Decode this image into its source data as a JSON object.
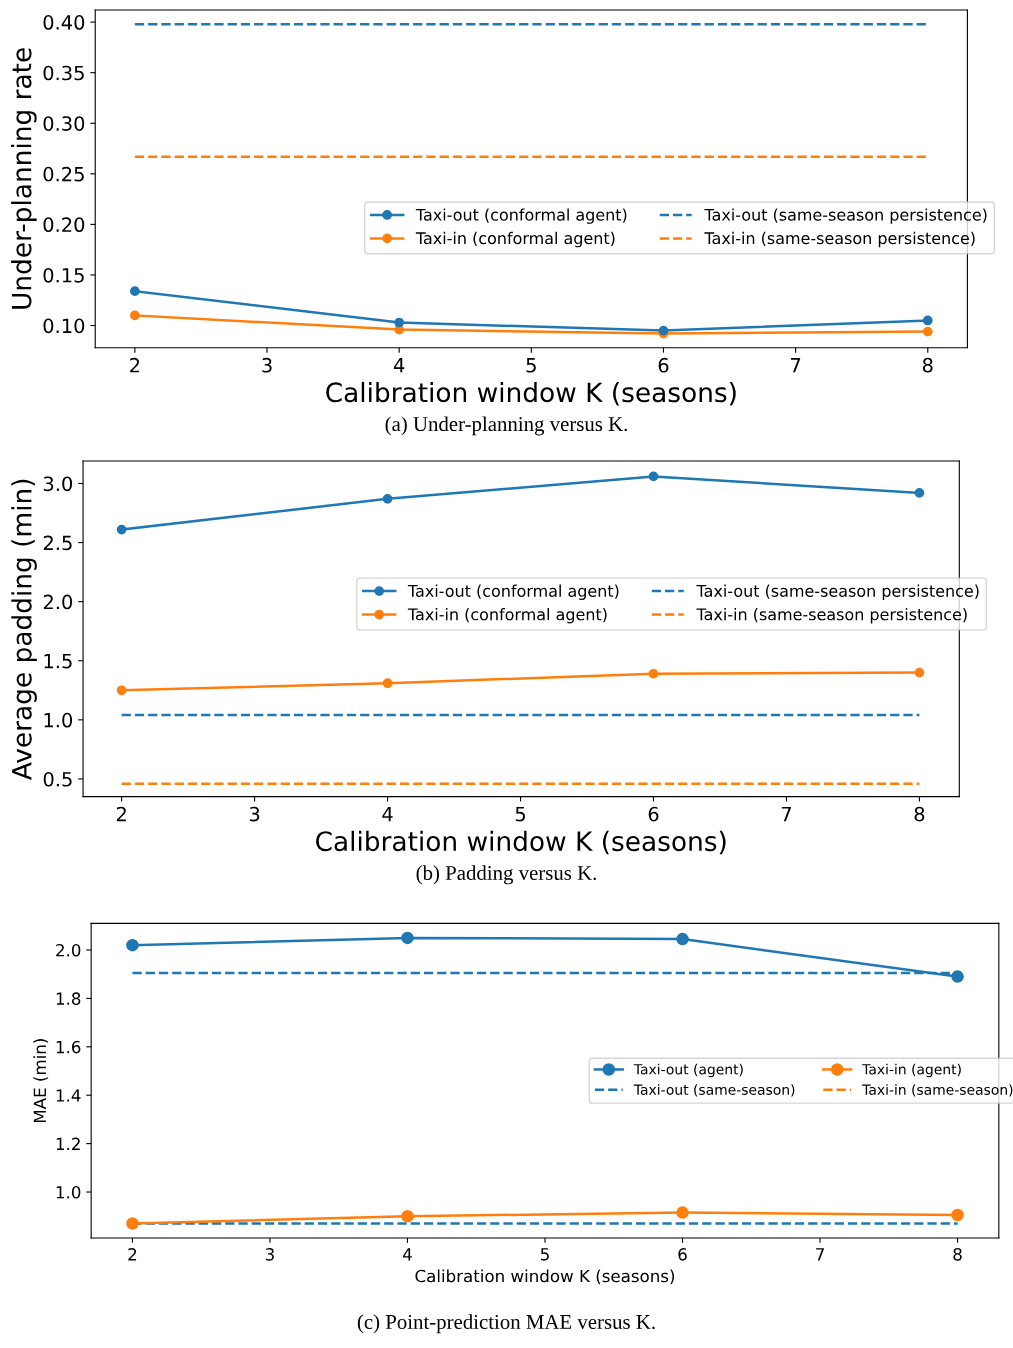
{
  "chart_data": [
    {
      "type": "line",
      "xlabel": "Calibration window K (seasons)",
      "ylabel": "Under-planning rate",
      "x": [
        2,
        4,
        6,
        8
      ],
      "xlim": [
        1.7,
        8.3
      ],
      "xticks": [
        2,
        3,
        4,
        5,
        6,
        7,
        8
      ],
      "ylim": [
        0.078,
        0.412
      ],
      "yticks": [
        {
          "value": 0.1,
          "label": "0.10"
        },
        {
          "value": 0.15,
          "label": "0.15"
        },
        {
          "value": 0.2,
          "label": "0.20"
        },
        {
          "value": 0.25,
          "label": "0.25"
        },
        {
          "value": 0.3,
          "label": "0.30"
        },
        {
          "value": 0.35,
          "label": "0.35"
        },
        {
          "value": 0.4,
          "label": "0.40"
        }
      ],
      "grid": false,
      "legend": "right",
      "annotations": [
        "(a) Under-planning versus K."
      ],
      "series": [
        {
          "name": "Taxi-out (conformal agent)",
          "color": "#1f77b4",
          "values": [
            0.134,
            0.103,
            0.095,
            0.105
          ],
          "marker": "circle",
          "line_style": "solid"
        },
        {
          "name": "Taxi-in (conformal agent)",
          "color": "#ff7f0e",
          "values": [
            0.11,
            0.096,
            0.092,
            0.094
          ],
          "marker": "circle",
          "line_style": "solid"
        },
        {
          "name": "Taxi-out (same-season persistence)",
          "color": "#1f77b4",
          "values": [
            0.398,
            0.398,
            0.398,
            0.398
          ],
          "marker": "none",
          "line_style": "dashed"
        },
        {
          "name": "Taxi-in (same-season persistence)",
          "color": "#ff7f0e",
          "values": [
            0.267,
            0.267,
            0.267,
            0.267
          ],
          "marker": "none",
          "line_style": "dashed"
        }
      ]
    },
    {
      "type": "line",
      "xlabel": "Calibration window K (seasons)",
      "ylabel": "Average padding (min)",
      "x": [
        2,
        4,
        6,
        8
      ],
      "xlim": [
        1.71,
        8.3
      ],
      "xticks": [
        2,
        3,
        4,
        5,
        6,
        7,
        8
      ],
      "ylim": [
        0.35,
        3.19
      ],
      "yticks": [
        0.5,
        {
          "value": 1,
          "label": "1.0"
        },
        1.5,
        {
          "value": 2,
          "label": "2.0"
        },
        2.5,
        {
          "value": 3,
          "label": "3.0"
        }
      ],
      "grid": false,
      "legend": "right",
      "annotations": [
        "(b) Padding versus K."
      ],
      "series": [
        {
          "name": "Taxi-out (conformal agent)",
          "color": "#1f77b4",
          "values": [
            2.61,
            2.87,
            3.06,
            2.92
          ],
          "marker": "circle",
          "line_style": "solid"
        },
        {
          "name": "Taxi-in (conformal agent)",
          "color": "#ff7f0e",
          "values": [
            1.25,
            1.31,
            1.39,
            1.4
          ],
          "marker": "circle",
          "line_style": "solid"
        },
        {
          "name": "Taxi-out (same-season persistence)",
          "color": "#1f77b4",
          "values": [
            1.04,
            1.04,
            1.04,
            1.04
          ],
          "marker": "none",
          "line_style": "dashed"
        },
        {
          "name": "Taxi-in (same-season persistence)",
          "color": "#ff7f0e",
          "values": [
            0.46,
            0.46,
            0.46,
            0.46
          ],
          "marker": "none",
          "line_style": "dashed"
        }
      ]
    },
    {
      "type": "line",
      "xlabel": "Calibration window K (seasons)",
      "ylabel": "MAE (min)",
      "x": [
        2,
        4,
        6,
        8
      ],
      "xlim": [
        1.7,
        8.3
      ],
      "xticks": [
        2,
        3,
        4,
        5,
        6,
        7,
        8
      ],
      "ylim": [
        0.81,
        2.11
      ],
      "yticks": [
        {
          "value": 1,
          "label": "1.0"
        },
        1.2,
        1.4,
        1.6,
        1.8,
        {
          "value": 2,
          "label": "2.0"
        }
      ],
      "grid": false,
      "legend": "right",
      "annotations": [
        "(c) Point-prediction MAE versus K."
      ],
      "series": [
        {
          "name": "Taxi-out (agent)",
          "color": "#1f77b4",
          "values": [
            2.02,
            2.05,
            2.045,
            1.89
          ],
          "marker": "circle",
          "line_style": "solid"
        },
        {
          "name": "Taxi-out (same-season)",
          "color": "#1f77b4",
          "values": [
            1.905,
            1.905,
            1.905,
            1.905
          ],
          "marker": "none",
          "line_style": "dashed"
        },
        {
          "name": "Taxi-in (agent)",
          "color": "#ff7f0e",
          "values": [
            0.87,
            0.9,
            0.915,
            0.905
          ],
          "marker": "circle",
          "line_style": "solid"
        },
        {
          "name": "Taxi-in (same-season)",
          "color": "#ff7f0e",
          "values": [
            null,
            null,
            null,
            null
          ],
          "marker": "none",
          "line_style": "dashed"
        },
        {
          "color": "#1f77b4",
          "values": [
            0.87,
            0.87,
            0.87,
            0.87
          ],
          "marker": "none",
          "line_style": "dashed"
        }
      ]
    }
  ]
}
